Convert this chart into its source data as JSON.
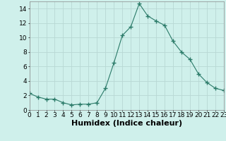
{
  "x": [
    0,
    1,
    2,
    3,
    4,
    5,
    6,
    7,
    8,
    9,
    10,
    11,
    12,
    13,
    14,
    15,
    16,
    17,
    18,
    19,
    20,
    21,
    22,
    23
  ],
  "y": [
    2.3,
    1.8,
    1.5,
    1.5,
    1.0,
    0.7,
    0.8,
    0.8,
    1.0,
    3.0,
    6.5,
    10.3,
    11.5,
    14.7,
    13.0,
    12.3,
    11.7,
    9.5,
    8.0,
    7.0,
    5.0,
    3.8,
    3.0,
    2.7
  ],
  "xlabel": "Humidex (Indice chaleur)",
  "xlim": [
    0,
    23
  ],
  "ylim": [
    0,
    15
  ],
  "xticks": [
    0,
    1,
    2,
    3,
    4,
    5,
    6,
    7,
    8,
    9,
    10,
    11,
    12,
    13,
    14,
    15,
    16,
    17,
    18,
    19,
    20,
    21,
    22,
    23
  ],
  "yticks": [
    0,
    2,
    4,
    6,
    8,
    10,
    12,
    14
  ],
  "line_color": "#2a7a68",
  "marker": "+",
  "marker_size": 4,
  "bg_color": "#cff0eb",
  "grid_color": "#b8d8d4",
  "xlabel_fontsize": 8,
  "tick_fontsize": 6.5
}
